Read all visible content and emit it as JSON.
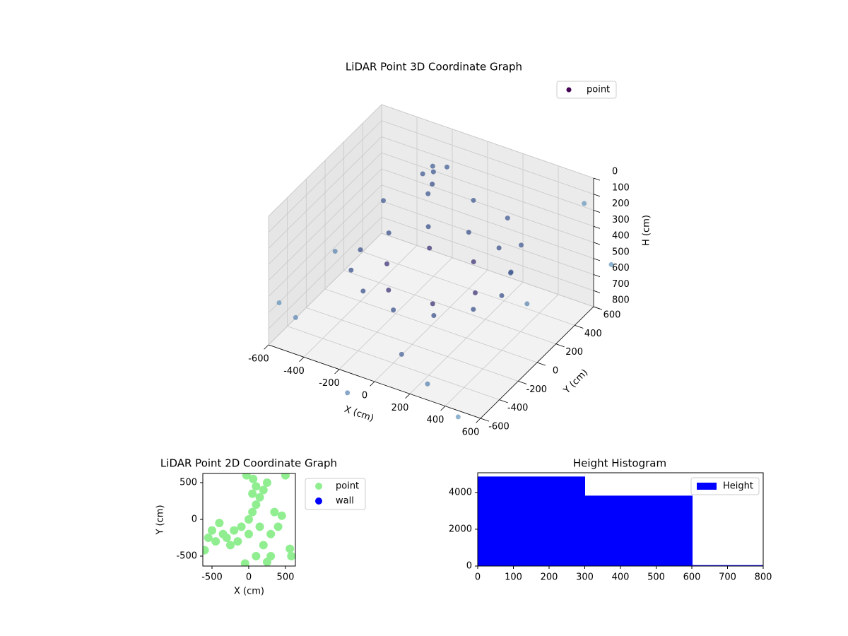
{
  "chart_data": [
    {
      "type": "scatter3d",
      "title": "LiDAR Point 3D Coordinate Graph",
      "xlabel": "X (cm)",
      "ylabel": "Y (cm)",
      "zlabel": "H (cm)",
      "xlim": [
        -600,
        600
      ],
      "ylim": [
        -600,
        600
      ],
      "zlim": [
        0,
        800
      ],
      "z_inverted": true,
      "xticks": [
        -600,
        -400,
        -200,
        0,
        200,
        400,
        600
      ],
      "yticks": [
        -600,
        -400,
        -200,
        0,
        200,
        400,
        600
      ],
      "zticks": [
        0,
        100,
        200,
        300,
        400,
        500,
        600,
        700,
        800
      ],
      "legend": "upper right",
      "colormap": [
        "#440154",
        "#3b528b",
        "#6b9bc0"
      ],
      "series": [
        {
          "name": "point",
          "color": "#440154",
          "x": [
            400,
            346,
            200,
            0,
            -200,
            -346,
            -400,
            -346,
            -200,
            0,
            200,
            346,
            250,
            125,
            -125,
            -250,
            -125,
            125,
            450,
            390,
            225,
            0,
            -225,
            -390,
            -200,
            -150,
            -250,
            -180,
            -220,
            -650,
            -500,
            600,
            650,
            300,
            -100,
            500,
            700,
            -700,
            100
          ],
          "y": [
            0,
            200,
            346,
            400,
            346,
            200,
            0,
            -200,
            -346,
            -400,
            -346,
            -200,
            0,
            217,
            217,
            0,
            -217,
            -217,
            0,
            225,
            390,
            450,
            390,
            225,
            400,
            450,
            380,
            350,
            430,
            200,
            -500,
            500,
            -200,
            -600,
            -700,
            -650,
            600,
            -300,
            -500
          ],
          "z": [
            460,
            450,
            440,
            450,
            460,
            470,
            480,
            470,
            460,
            470,
            460,
            450,
            500,
            480,
            490,
            510,
            500,
            490,
            300,
            280,
            270,
            280,
            290,
            300,
            150,
            130,
            170,
            190,
            140,
            700,
            650,
            100,
            300,
            700,
            850,
            800,
            500,
            750,
            650
          ]
        }
      ]
    },
    {
      "type": "scatter",
      "title": "LiDAR Point 2D Coordinate Graph",
      "xlabel": "X (cm)",
      "ylabel": "Y (cm)",
      "xlim": [
        -625,
        635
      ],
      "ylim": [
        -635,
        625
      ],
      "xticks": [
        -500,
        0,
        500
      ],
      "yticks": [
        -500,
        0,
        500
      ],
      "legend": "outside right",
      "series": [
        {
          "name": "point",
          "color": "#90ee90",
          "x": [
            0,
            50,
            100,
            150,
            200,
            250,
            100,
            50,
            150,
            0,
            -100,
            -200,
            -300,
            -400,
            -500,
            -450,
            -350,
            -250,
            -150,
            300,
            400,
            450,
            350,
            200,
            100,
            -30,
            60,
            500,
            -600,
            560,
            580,
            250,
            -50,
            300,
            -550
          ],
          "y": [
            0,
            100,
            200,
            300,
            400,
            500,
            450,
            350,
            -100,
            -200,
            -100,
            -150,
            -250,
            -50,
            -150,
            -300,
            -200,
            -350,
            -300,
            -200,
            -100,
            50,
            100,
            -350,
            -500,
            600,
            550,
            600,
            -420,
            -400,
            -500,
            -580,
            -600,
            -500,
            -250
          ]
        },
        {
          "name": "wall",
          "color": "#0000ff",
          "x": [],
          "y": []
        }
      ]
    },
    {
      "type": "histogram",
      "title": "Height Histogram",
      "xlim": [
        0,
        800
      ],
      "ylim": [
        0,
        5070
      ],
      "xticks": [
        0,
        100,
        200,
        300,
        400,
        500,
        600,
        700,
        800
      ],
      "yticks": [
        0,
        2000,
        4000
      ],
      "legend": "upper right",
      "series": [
        {
          "name": "Height",
          "color": "#0000ff",
          "bins": [
            0,
            301,
            602,
            903
          ],
          "counts": [
            4846,
            3808,
            30
          ]
        }
      ]
    }
  ]
}
